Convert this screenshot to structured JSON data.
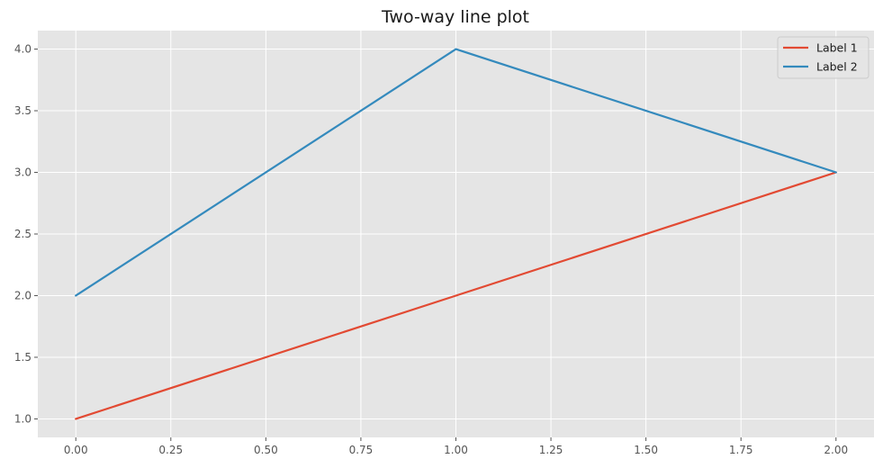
{
  "chart_data": {
    "type": "line",
    "title": "Two-way line plot",
    "xlabel": "",
    "ylabel": "",
    "xlim": [
      -0.1,
      2.1
    ],
    "ylim": [
      0.85,
      4.15
    ],
    "xticks": [
      0.0,
      0.25,
      0.5,
      0.75,
      1.0,
      1.25,
      1.5,
      1.75,
      2.0
    ],
    "xtick_labels": [
      "0.00",
      "0.25",
      "0.50",
      "0.75",
      "1.00",
      "1.25",
      "1.50",
      "1.75",
      "2.00"
    ],
    "yticks": [
      1.0,
      1.5,
      2.0,
      2.5,
      3.0,
      3.5,
      4.0
    ],
    "ytick_labels": [
      "1.0",
      "1.5",
      "2.0",
      "2.5",
      "3.0",
      "3.5",
      "4.0"
    ],
    "grid": true,
    "legend_position": "top-right",
    "background_color": "#e5e5e5",
    "grid_color": "#ffffff",
    "series": [
      {
        "name": "Label 1",
        "color": "#e24a33",
        "x": [
          0,
          1,
          2
        ],
        "y": [
          1,
          2,
          3
        ]
      },
      {
        "name": "Label 2",
        "color": "#348abd",
        "x": [
          0,
          1,
          2
        ],
        "y": [
          2,
          4,
          3
        ]
      }
    ]
  }
}
